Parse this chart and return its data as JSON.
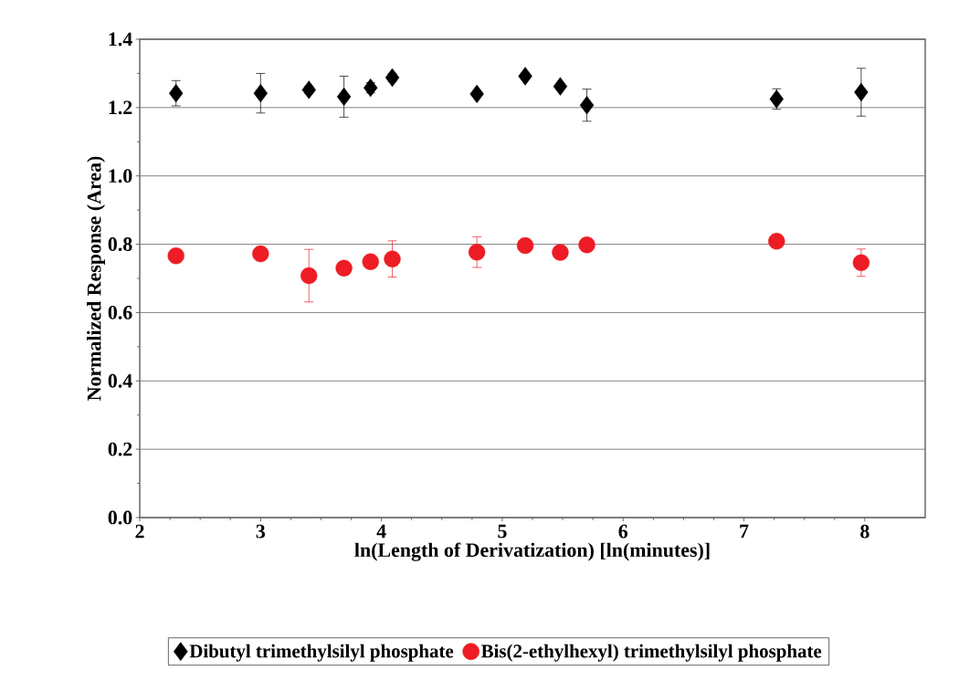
{
  "chart_data": {
    "type": "scatter",
    "xlabel": "ln(Length of Derivatization) [ln(minutes)]",
    "ylabel": "Normalized Response (Area)",
    "x": [
      2.3,
      3.0,
      3.4,
      3.69,
      3.91,
      4.09,
      4.79,
      5.19,
      5.48,
      5.7,
      7.27,
      7.97
    ],
    "xlim": [
      2,
      8.5
    ],
    "xticks": [
      2,
      3,
      4,
      5,
      6,
      7,
      8
    ],
    "ylim": [
      0,
      1.4
    ],
    "yticks": [
      {
        "value": 0,
        "label": "0.0"
      },
      {
        "value": 0.2,
        "label": "0.2"
      },
      {
        "value": 0.4,
        "label": "0.4"
      },
      {
        "value": 0.6,
        "label": "0.6"
      },
      {
        "value": 0.8,
        "label": "0.8"
      },
      {
        "value": 1.0,
        "label": "1.0"
      },
      {
        "value": 1.2,
        "label": "1.2"
      },
      {
        "value": 1.4,
        "label": "1.4"
      }
    ],
    "grid": "y",
    "legend": "bottom",
    "series": [
      {
        "name": "Dibutyl trimethylsilyl phosphate",
        "color": "#000000",
        "marker": "diamond",
        "values": [
          1.242,
          1.242,
          1.252,
          1.232,
          1.258,
          1.288,
          1.24,
          1.292,
          1.262,
          1.207,
          1.225,
          1.245
        ],
        "errors": [
          0.037,
          0.058,
          0.01,
          0.06,
          0.015,
          0.012,
          0.005,
          0.008,
          0.005,
          0.047,
          0.03,
          0.07
        ]
      },
      {
        "name": "Bis(2-ethylhexyl) trimethylsilyl phosphate",
        "color": "#ee1c24",
        "marker": "circle",
        "values": [
          0.766,
          0.772,
          0.708,
          0.73,
          0.749,
          0.757,
          0.777,
          0.796,
          0.776,
          0.798,
          0.809,
          0.746
        ],
        "errors": [
          0.01,
          0.01,
          0.077,
          0.005,
          0.008,
          0.053,
          0.045,
          0.005,
          0.005,
          0.005,
          0.005,
          0.04
        ]
      }
    ]
  }
}
